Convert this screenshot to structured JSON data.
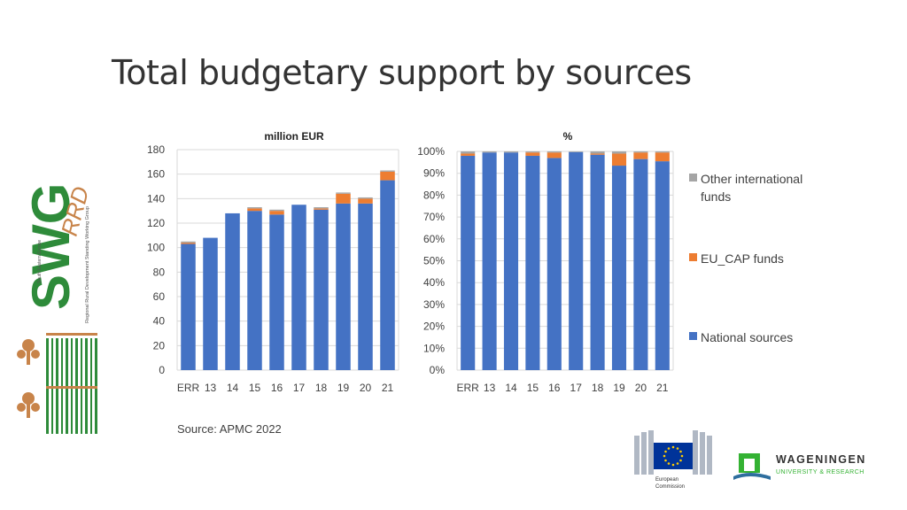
{
  "slide": {
    "title": "Total budgetary support by sources",
    "source": "Source: APMC 2022"
  },
  "colors": {
    "national": "#4472C4",
    "eu_cap": "#ED7D31",
    "other": "#A5A5A5",
    "grid": "#D9D9D9"
  },
  "legend": [
    {
      "label": "Other international funds",
      "color": "#A5A5A5"
    },
    {
      "label": "EU_CAP funds",
      "color": "#ED7D31"
    },
    {
      "label": "National sources",
      "color": "#4472C4"
    }
  ],
  "logos": {
    "swg_text": "SWG",
    "swg_rrd": "RRD",
    "swg_subtitle_1": "Regional Rural Development Standing Working Group",
    "swg_subtitle_2": "South Eastern Europe",
    "ec_line1": "European",
    "ec_line2": "Commission",
    "wur_line1": "WAGENINGEN",
    "wur_line2": "UNIVERSITY & RESEARCH"
  },
  "chart_data": [
    {
      "type": "bar",
      "stacked": true,
      "title": "million EUR",
      "categories": [
        "ERR",
        "13",
        "14",
        "15",
        "16",
        "17",
        "18",
        "19",
        "20",
        "21"
      ],
      "series": [
        {
          "name": "National sources",
          "color": "#4472C4",
          "values": [
            103,
            108,
            128,
            130,
            127,
            135,
            131,
            136,
            136,
            155
          ]
        },
        {
          "name": "EU_CAP funds",
          "color": "#ED7D31",
          "values": [
            1,
            0,
            0,
            2,
            3,
            0,
            1,
            8,
            4,
            7
          ]
        },
        {
          "name": "Other international funds",
          "color": "#A5A5A5",
          "values": [
            1,
            0,
            0,
            1,
            1,
            0,
            1,
            1,
            1,
            1
          ]
        }
      ],
      "ylim": [
        0,
        180
      ],
      "yticks": [
        "0",
        "20",
        "40",
        "60",
        "80",
        "100",
        "120",
        "140",
        "160",
        "180"
      ],
      "grid": true
    },
    {
      "type": "bar",
      "stacked": true,
      "title": "%",
      "categories": [
        "ERR",
        "13",
        "14",
        "15",
        "16",
        "17",
        "18",
        "19",
        "20",
        "21"
      ],
      "series": [
        {
          "name": "National sources",
          "color": "#4472C4",
          "values": [
            98,
            99.5,
            99.5,
            98,
            97,
            99.7,
            98.5,
            93.5,
            96.5,
            95.5
          ]
        },
        {
          "name": "EU_CAP funds",
          "color": "#ED7D31",
          "values": [
            1,
            0,
            0,
            1.5,
            2.5,
            0,
            0.5,
            5.5,
            3,
            4
          ]
        },
        {
          "name": "Other international funds",
          "color": "#A5A5A5",
          "values": [
            1,
            0.5,
            0.5,
            0.5,
            0.5,
            0.3,
            1,
            1,
            0.5,
            0.5
          ]
        }
      ],
      "ylim": [
        0,
        100
      ],
      "yticks": [
        "0%",
        "10%",
        "20%",
        "30%",
        "40%",
        "50%",
        "60%",
        "70%",
        "80%",
        "90%",
        "100%"
      ],
      "grid": true
    }
  ]
}
